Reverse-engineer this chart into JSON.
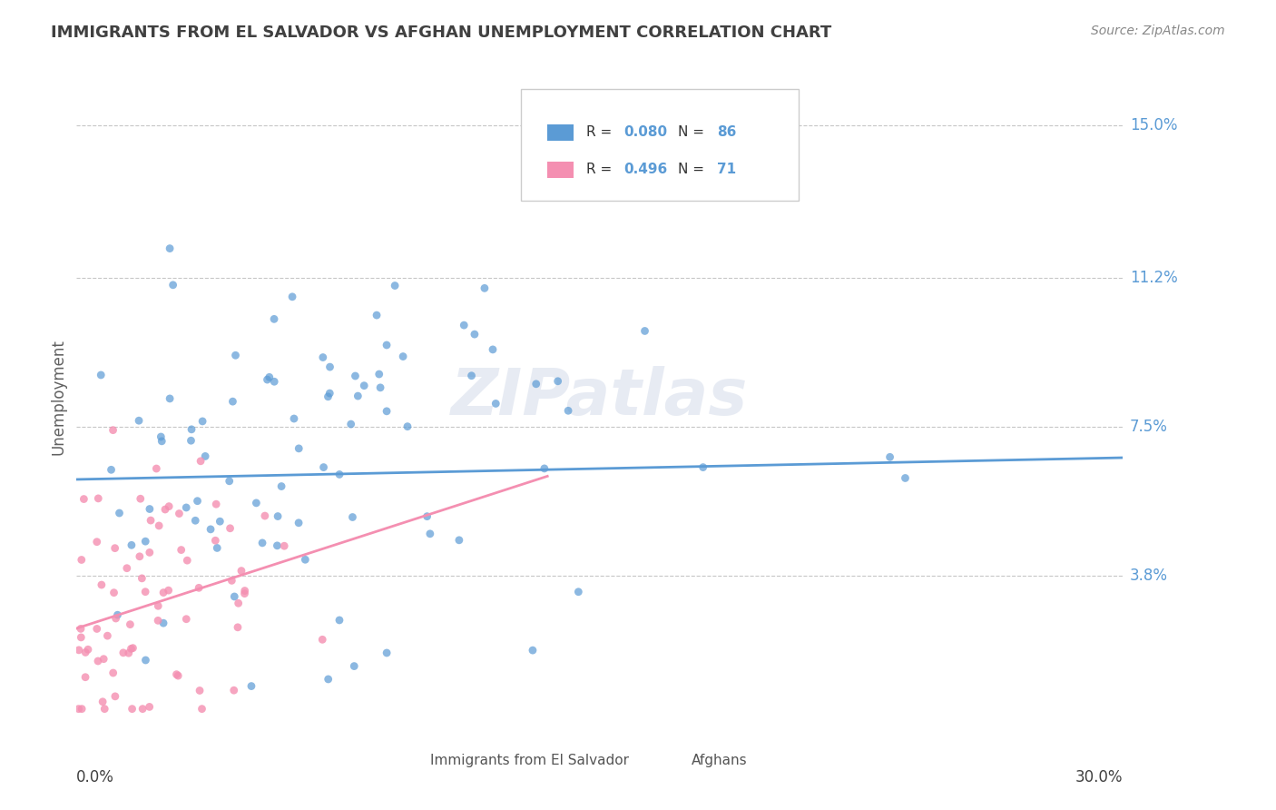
{
  "title": "IMMIGRANTS FROM EL SALVADOR VS AFGHAN UNEMPLOYMENT CORRELATION CHART",
  "source_text": "Source: ZipAtlas.com",
  "ylabel": "Unemployment",
  "xlim": [
    0.0,
    0.3
  ],
  "ylim": [
    0.0,
    0.165
  ],
  "ytick_values": [
    0.038,
    0.075,
    0.112,
    0.15
  ],
  "ytick_labels": [
    "3.8%",
    "7.5%",
    "11.2%",
    "15.0%"
  ],
  "legend_bottom_labels": [
    "Immigrants from El Salvador",
    "Afghans"
  ],
  "blue_color": "#5b9bd5",
  "pink_color": "#f48fb1",
  "background_color": "#ffffff",
  "grid_color": "#b0b0b0",
  "watermark_text": "ZIPatlas",
  "watermark_color": "#d0d8e8",
  "title_color": "#404040",
  "ylabel_color": "#606060",
  "ytick_color": "#5b9bd5",
  "blue_R": 0.08,
  "blue_N": 86,
  "pink_R": 0.496,
  "pink_N": 71,
  "blue_slope": 0.018,
  "blue_intercept": 0.062,
  "pink_slope": 0.28,
  "pink_intercept": 0.025
}
